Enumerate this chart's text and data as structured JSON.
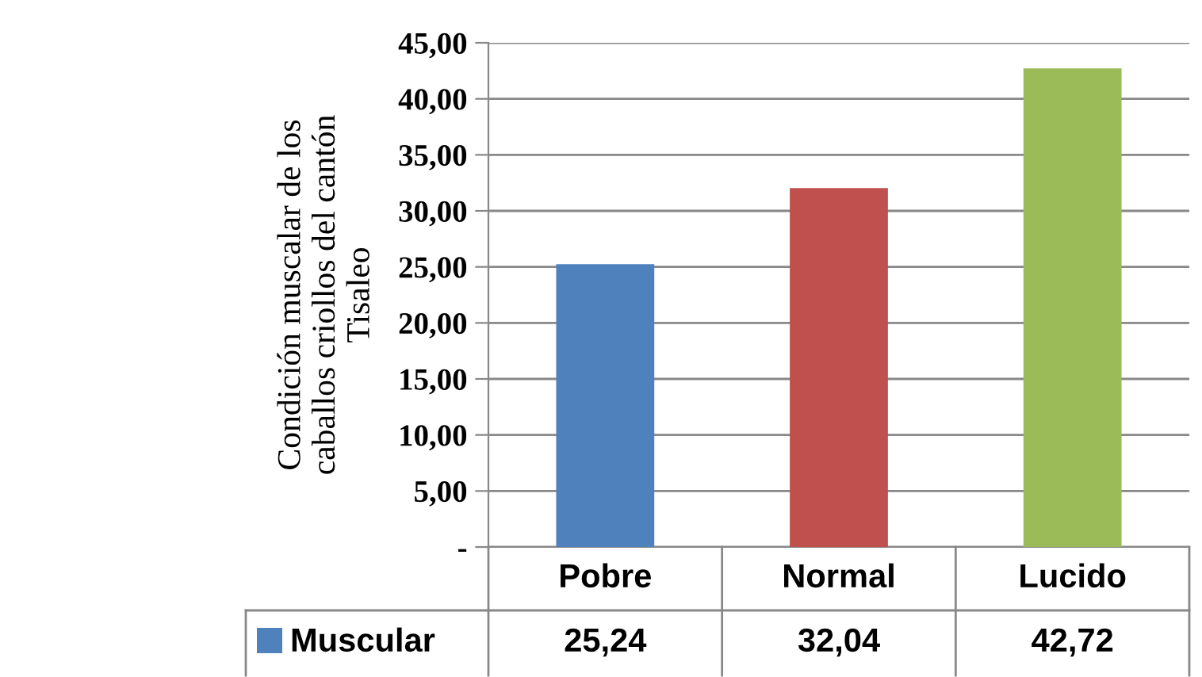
{
  "chart_data": {
    "type": "bar",
    "ylabel": "Condición muscalar de los\ncaballos criollos del cantón\nTisaleo",
    "categories": [
      "Pobre",
      "Normal",
      "Lucido"
    ],
    "series": [
      {
        "name": "Muscular",
        "color": "#4f81bd",
        "colors": [
          "#4f81bd",
          "#c0504d",
          "#9bbb59"
        ],
        "values": [
          25.24,
          32.04,
          42.72
        ],
        "value_labels": [
          "25,24",
          "32,04",
          "42,72"
        ]
      }
    ],
    "ylim": [
      0,
      45
    ],
    "yticks": [
      {
        "value": 0,
        "label": "-"
      },
      {
        "value": 5,
        "label": "5,00"
      },
      {
        "value": 10,
        "label": "10,00"
      },
      {
        "value": 15,
        "label": "15,00"
      },
      {
        "value": 20,
        "label": "20,00"
      },
      {
        "value": 25,
        "label": "25,00"
      },
      {
        "value": 30,
        "label": "30,00"
      },
      {
        "value": 35,
        "label": "35,00"
      },
      {
        "value": 40,
        "label": "40,00"
      },
      {
        "value": 45,
        "label": "45,00"
      }
    ],
    "grid": "y",
    "legend": "bottom"
  }
}
